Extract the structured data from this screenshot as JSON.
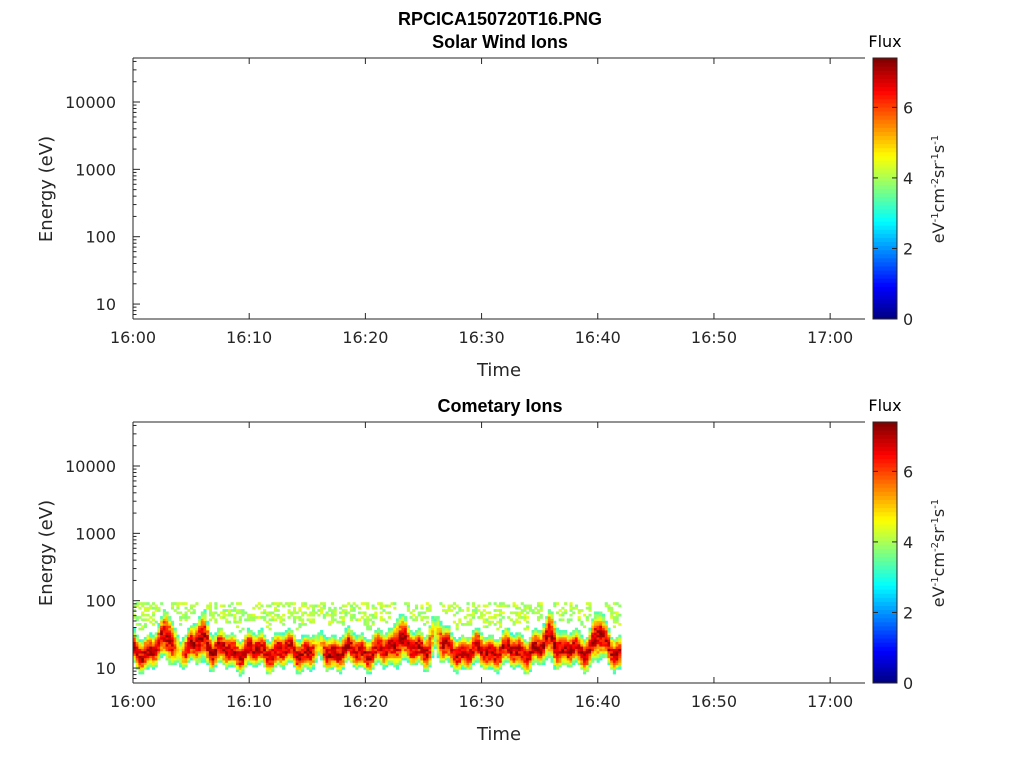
{
  "figure": {
    "title": "RPCICA150720T16.PNG"
  },
  "chart_data": [
    {
      "type": "heatmap",
      "title": "Solar Wind Ions",
      "xlabel": "Time",
      "ylabel": "Energy (eV)",
      "x_ticks": [
        "16:00",
        "16:10",
        "16:20",
        "16:30",
        "16:40",
        "16:50",
        "17:00"
      ],
      "xlim": [
        "16:00",
        "17:03"
      ],
      "y_scale": "log",
      "y_ticks": [
        "10",
        "100",
        "1000",
        "10000"
      ],
      "ylim": [
        6,
        45000
      ],
      "colorbar": {
        "title": "Flux",
        "label": "eV-1cm-2sr-1s-1",
        "ticks": [
          "0",
          "2",
          "4",
          "6"
        ],
        "range": [
          0,
          7.4
        ],
        "colormap": "jet"
      },
      "data": []
    },
    {
      "type": "heatmap",
      "title": "Cometary Ions",
      "xlabel": "Time",
      "ylabel": "Energy (eV)",
      "x_ticks": [
        "16:00",
        "16:10",
        "16:20",
        "16:30",
        "16:40",
        "16:50",
        "17:00"
      ],
      "xlim": [
        "16:00",
        "17:03"
      ],
      "y_scale": "log",
      "y_ticks": [
        "10",
        "100",
        "1000",
        "10000"
      ],
      "ylim": [
        6,
        45000
      ],
      "colorbar": {
        "title": "Flux",
        "label": "eV-1cm-2sr-1s-1",
        "ticks": [
          "0",
          "2",
          "4",
          "6"
        ],
        "range": [
          0,
          7.4
        ],
        "colormap": "jet"
      },
      "data_coverage": {
        "start": "16:00",
        "end": "16:42"
      },
      "band": {
        "peak_energy_eV": 18,
        "low_energy_eV": 6,
        "high_energy_eV": 80,
        "peak_flux": 7.2
      },
      "spikes": [
        "16:03",
        "16:06",
        "16:23",
        "16:26",
        "16:36",
        "16:40"
      ],
      "gaps": [
        "16:04",
        "16:16",
        "16:26"
      ]
    }
  ]
}
